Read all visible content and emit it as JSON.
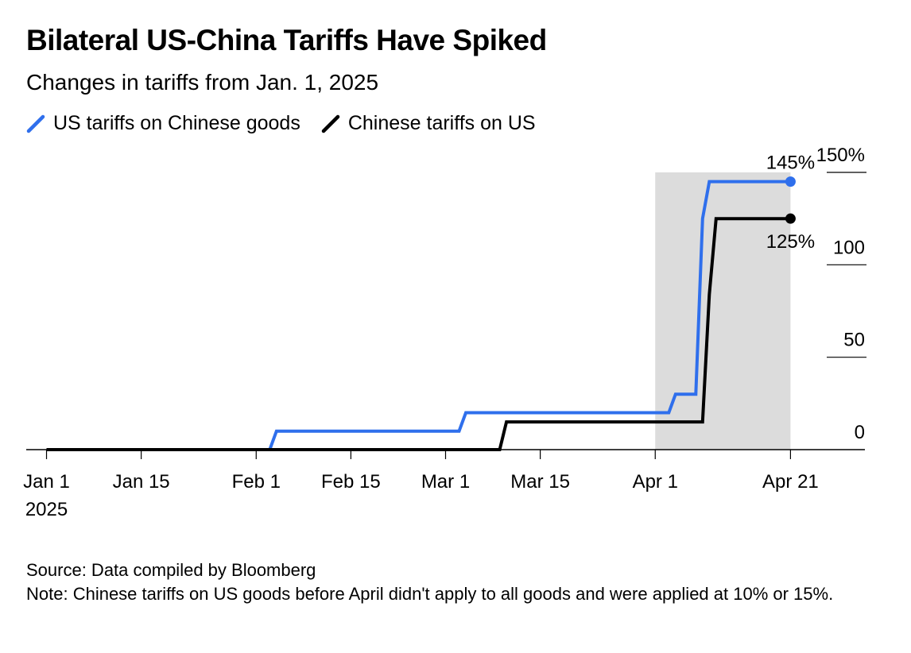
{
  "title": "Bilateral US-China Tariffs Have Spiked",
  "subtitle": "Changes in tariffs from Jan. 1, 2025",
  "legend": [
    {
      "label": "US tariffs on Chinese goods",
      "color": "#2f6fec"
    },
    {
      "label": "Chinese tariffs on US",
      "color": "#000000"
    }
  ],
  "source": "Source: Data compiled by Bloomberg",
  "note": "Note: Chinese tariffs on US goods before April didn't apply to all goods and were applied at 10% or 15%.",
  "chart_data": {
    "type": "line",
    "xlim": [
      "2024-12-29",
      "2025-05-02"
    ],
    "ylim": [
      0,
      150
    ],
    "x_ticks": [
      {
        "x": "2025-01-01",
        "label": "Jan 1",
        "sublabel": "2025"
      },
      {
        "x": "2025-01-15",
        "label": "Jan 15"
      },
      {
        "x": "2025-02-01",
        "label": "Feb 1"
      },
      {
        "x": "2025-02-15",
        "label": "Feb 15"
      },
      {
        "x": "2025-03-01",
        "label": "Mar 1"
      },
      {
        "x": "2025-03-15",
        "label": "Mar 15"
      },
      {
        "x": "2025-04-01",
        "label": "Apr 1"
      },
      {
        "x": "2025-04-21",
        "label": "Apr 21"
      }
    ],
    "y_ticks": [
      {
        "y": 0,
        "label": "0"
      },
      {
        "y": 50,
        "label": "50"
      },
      {
        "y": 100,
        "label": "100"
      },
      {
        "y": 150,
        "label": "150%"
      }
    ],
    "shaded_region": {
      "x_start": "2025-04-01",
      "x_end": "2025-04-21"
    },
    "series": [
      {
        "name": "US tariffs on Chinese goods",
        "color": "#2f6fec",
        "end_label": "145%",
        "points": [
          {
            "x": "2025-01-01",
            "y": 0
          },
          {
            "x": "2025-02-03",
            "y": 0
          },
          {
            "x": "2025-02-04",
            "y": 10
          },
          {
            "x": "2025-03-03",
            "y": 10
          },
          {
            "x": "2025-03-04",
            "y": 20
          },
          {
            "x": "2025-04-03",
            "y": 20
          },
          {
            "x": "2025-04-04",
            "y": 30
          },
          {
            "x": "2025-04-07",
            "y": 30
          },
          {
            "x": "2025-04-08",
            "y": 125
          },
          {
            "x": "2025-04-09",
            "y": 145
          },
          {
            "x": "2025-04-21",
            "y": 145
          }
        ]
      },
      {
        "name": "Chinese tariffs on US",
        "color": "#000000",
        "end_label": "125%",
        "points": [
          {
            "x": "2025-01-01",
            "y": 0
          },
          {
            "x": "2025-03-09",
            "y": 0
          },
          {
            "x": "2025-03-10",
            "y": 15
          },
          {
            "x": "2025-04-08",
            "y": 15
          },
          {
            "x": "2025-04-09",
            "y": 84
          },
          {
            "x": "2025-04-10",
            "y": 125
          },
          {
            "x": "2025-04-21",
            "y": 125
          }
        ]
      }
    ]
  }
}
